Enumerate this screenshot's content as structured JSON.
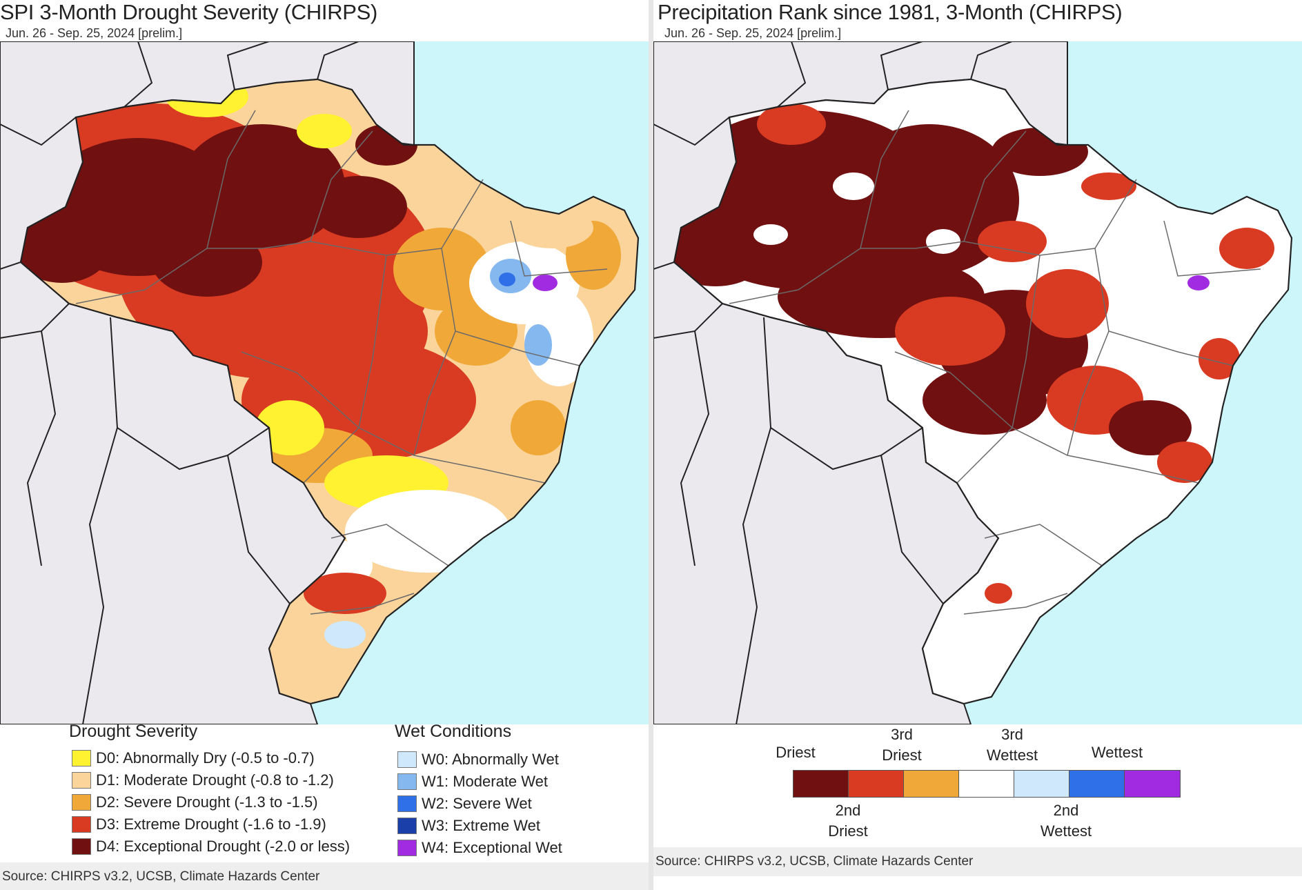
{
  "left": {
    "title": "SPI 3-Month Drought Severity (CHIRPS)",
    "subtitle": "Jun. 26 - Sep. 25, 2024 [prelim.]",
    "legend": {
      "drought_title": "Drought Severity",
      "wet_title": "Wet Conditions",
      "drought": [
        {
          "label": "D0: Abnormally Dry (-0.5 to -0.7)",
          "color": "#fff230"
        },
        {
          "label": "D1: Moderate Drought (-0.8 to -1.2)",
          "color": "#fad49a"
        },
        {
          "label": "D2: Severe Drought (-1.3 to -1.5)",
          "color": "#f0a838"
        },
        {
          "label": "D3: Extreme Drought (-1.6 to -1.9)",
          "color": "#d93a22"
        },
        {
          "label": "D4: Exceptional Drought (-2.0 or less)",
          "color": "#701010"
        }
      ],
      "wet": [
        {
          "label": "W0: Abnormally Wet",
          "color": "#cfe8fb"
        },
        {
          "label": "W1: Moderate Wet",
          "color": "#86b8f0"
        },
        {
          "label": "W2: Severe Wet",
          "color": "#2f6fe8"
        },
        {
          "label": "W3: Extreme Wet",
          "color": "#1b3fa8"
        },
        {
          "label": "W4: Exceptional Wet",
          "color": "#a02be0"
        }
      ]
    },
    "source": "Source: CHIRPS v3.2, UCSB, Climate Hazards Center"
  },
  "right": {
    "title": "Precipitation Rank since 1981, 3-Month (CHIRPS)",
    "subtitle": "Jun. 26 - Sep. 25, 2024 [prelim.]",
    "rank_colors": [
      "#701010",
      "#d93a22",
      "#f0a838",
      "#ffffff",
      "#cfe8fb",
      "#2f6fe8",
      "#a02be0"
    ],
    "labels_top": {
      "driest": "Driest",
      "third_driest": "3rd Driest",
      "third_wettest": "3rd Wettest",
      "wettest": "Wettest"
    },
    "labels_bottom": {
      "second_driest": "2nd Driest",
      "second_wettest": "2nd Wettest"
    },
    "source": "Source: CHIRPS v3.2, UCSB, Climate Hazards Center"
  },
  "colors": {
    "ocean": "#cdf6fb",
    "land_outside": "#ece9ee",
    "border": "#222222",
    "state_border": "#8a8a8a"
  }
}
